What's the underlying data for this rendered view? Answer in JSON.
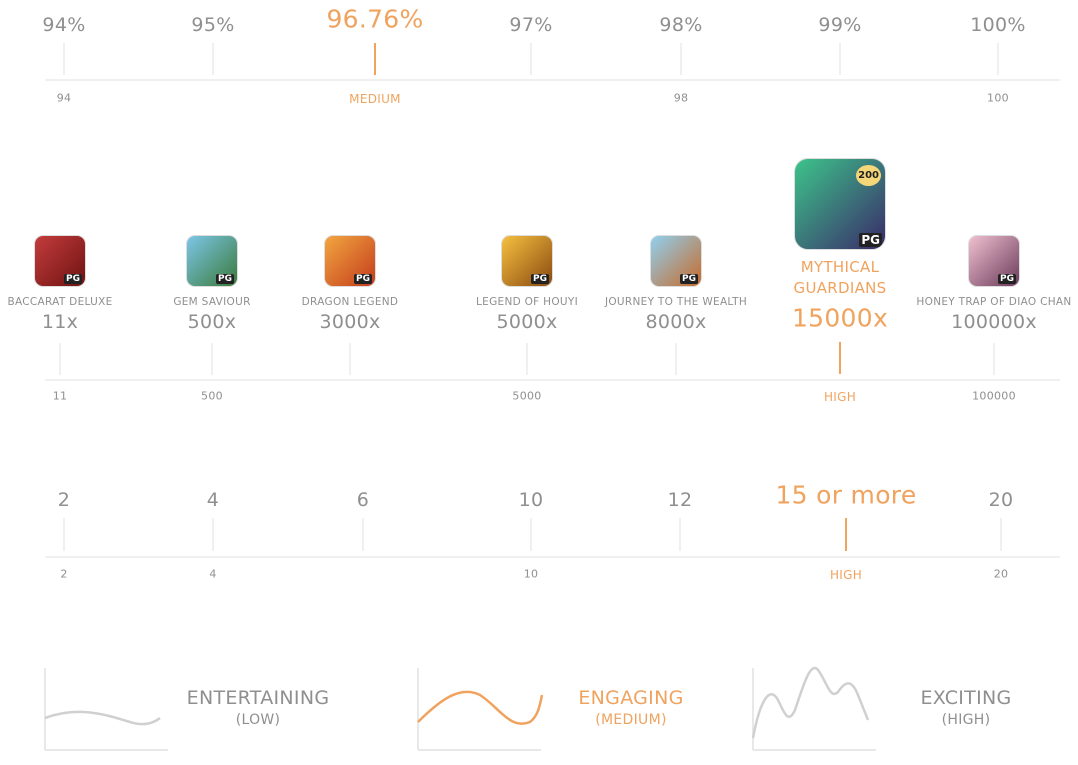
{
  "rtp": {
    "ticks": [
      {
        "label": "94%",
        "sub": "94"
      },
      {
        "label": "95%"
      },
      {
        "label": "96.76%",
        "sub": "MEDIUM",
        "highlight": true
      },
      {
        "label": "97%"
      },
      {
        "label": "98%",
        "sub": "98"
      },
      {
        "label": "99%"
      },
      {
        "label": "100%",
        "sub": "100"
      }
    ]
  },
  "max_win": {
    "games": [
      {
        "name": "BACCARAT DELUXE",
        "value": "11x",
        "sub": "11",
        "badge": "PG"
      },
      {
        "name": "GEM SAVIOUR",
        "value": "500x",
        "sub": "500",
        "badge": "PG"
      },
      {
        "name": "DRAGON LEGEND",
        "value": "3000x",
        "badge": "PG"
      },
      {
        "name": "LEGEND OF HOUYI",
        "value": "5000x",
        "sub": "5000",
        "badge": "PG"
      },
      {
        "name": "JOURNEY TO THE WEALTH",
        "value": "8000x",
        "badge": "PG"
      },
      {
        "name": "MYTHICAL GUARDIANS",
        "value": "15000x",
        "sub": "HIGH",
        "badge": "PG",
        "extra_badge": "200",
        "highlight": true
      },
      {
        "name": "HONEY TRAP OF DIAO CHAN",
        "value": "100000x",
        "sub": "100000",
        "badge": "PG"
      }
    ]
  },
  "lines": {
    "ticks": [
      {
        "label": "2",
        "sub": "2"
      },
      {
        "label": "4",
        "sub": "4"
      },
      {
        "label": "6"
      },
      {
        "label": "10",
        "sub": "10"
      },
      {
        "label": "12"
      },
      {
        "label": "15 or more",
        "sub": "HIGH",
        "highlight": true
      },
      {
        "label": "20",
        "sub": "20"
      }
    ]
  },
  "volatility": [
    {
      "title": "ENTERTAINING",
      "sub": "(LOW)"
    },
    {
      "title": "ENGAGING",
      "sub": "(MEDIUM)",
      "highlight": true
    },
    {
      "title": "EXCITING",
      "sub": "(HIGH)"
    }
  ]
}
